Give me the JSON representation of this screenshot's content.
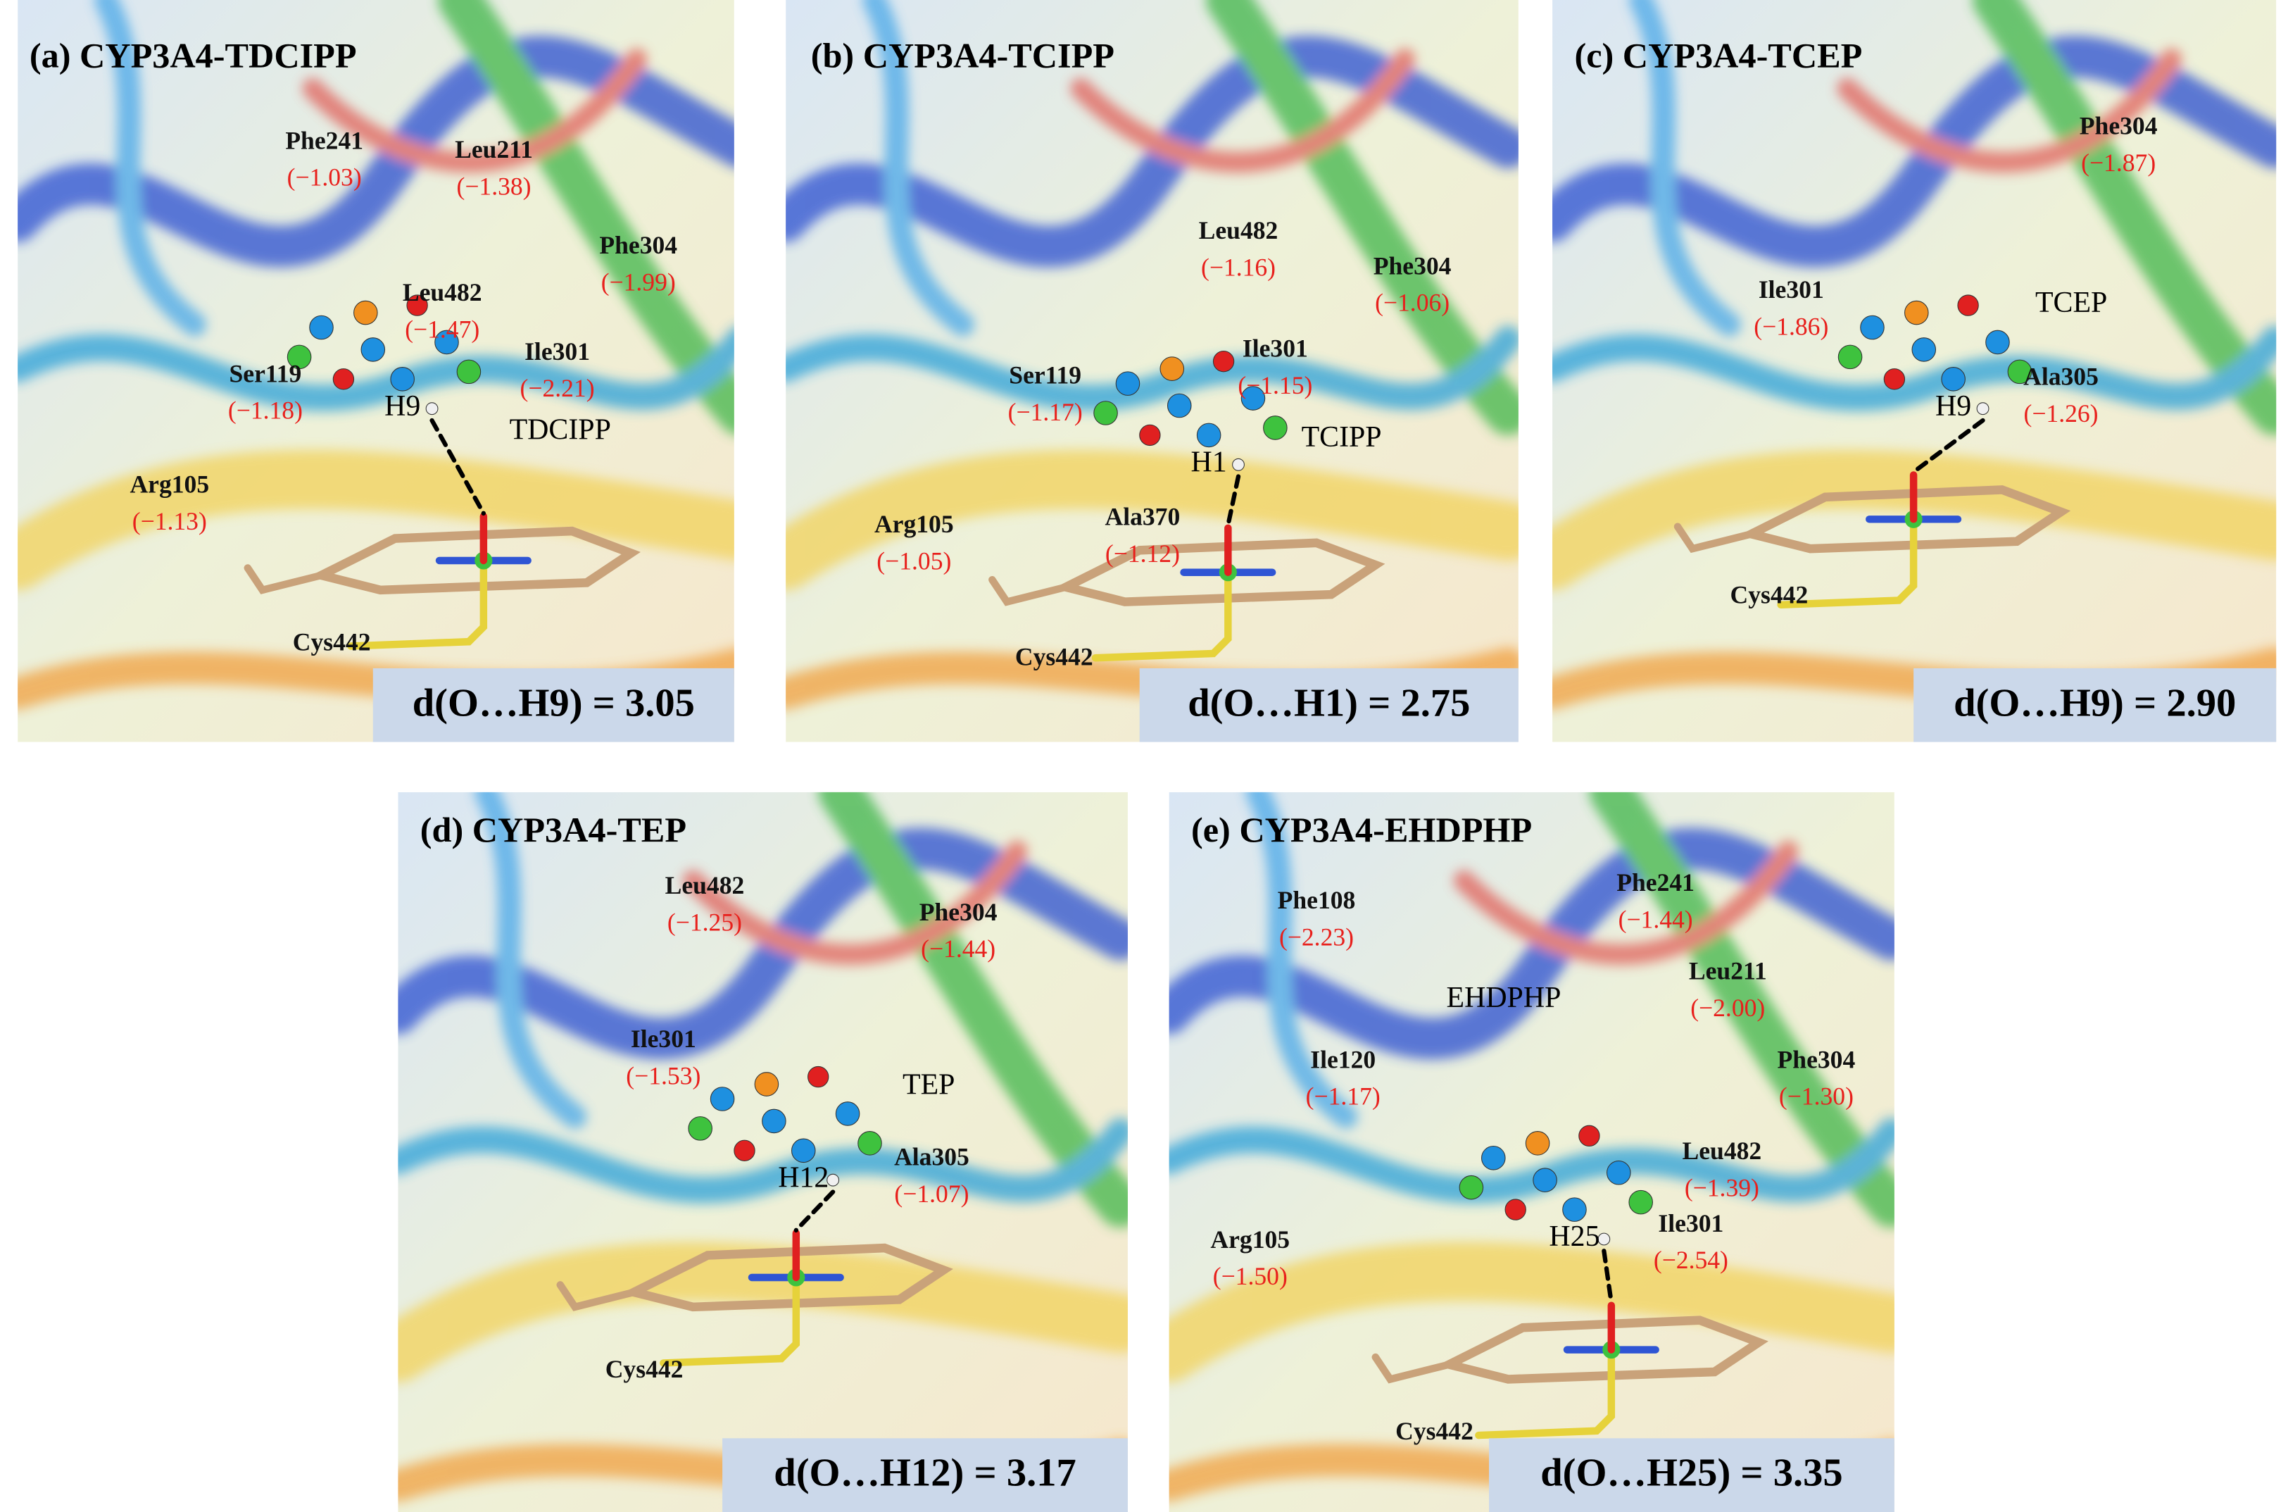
{
  "panels": [
    {
      "title": "(a) CYP3A4-TDCIPP",
      "ligand": "TDCIPP",
      "hydrogen": "H9",
      "anchor": "Cys442",
      "distance": "d(O…H9) = 3.05",
      "residues": [
        {
          "name": "Phe241",
          "energy": "(−1.03)"
        },
        {
          "name": "Leu211",
          "energy": "(−1.38)"
        },
        {
          "name": "Phe304",
          "energy": "(−1.99)"
        },
        {
          "name": "Leu482",
          "energy": "(−1.47)"
        },
        {
          "name": "Ile301",
          "energy": "(−2.21)"
        },
        {
          "name": "Ser119",
          "energy": "(−1.18)"
        },
        {
          "name": "Arg105",
          "energy": "(−1.13)"
        }
      ]
    },
    {
      "title": "(b) CYP3A4-TCIPP",
      "ligand": "TCIPP",
      "hydrogen": "H1",
      "anchor": "Cys442",
      "distance": "d(O…H1) = 2.75",
      "residues": [
        {
          "name": "Leu482",
          "energy": "(−1.16)"
        },
        {
          "name": "Phe304",
          "energy": "(−1.06)"
        },
        {
          "name": "Ile301",
          "energy": "(−1.15)"
        },
        {
          "name": "Ser119",
          "energy": "(−1.17)"
        },
        {
          "name": "Arg105",
          "energy": "(−1.05)"
        },
        {
          "name": "Ala370",
          "energy": "(−1.12)"
        }
      ]
    },
    {
      "title": "(c) CYP3A4-TCEP",
      "ligand": "TCEP",
      "hydrogen": "H9",
      "anchor": "Cys442",
      "distance": "d(O…H9) = 2.90",
      "residues": [
        {
          "name": "Phe304",
          "energy": "(−1.87)"
        },
        {
          "name": "Ile301",
          "energy": "(−1.86)"
        },
        {
          "name": "Ala305",
          "energy": "(−1.26)"
        }
      ]
    },
    {
      "title": "(d) CYP3A4-TEP",
      "ligand": "TEP",
      "hydrogen": "H12",
      "anchor": "Cys442",
      "distance": "d(O…H12) = 3.17",
      "residues": [
        {
          "name": "Leu482",
          "energy": "(−1.25)"
        },
        {
          "name": "Phe304",
          "energy": "(−1.44)"
        },
        {
          "name": "Ile301",
          "energy": "(−1.53)"
        },
        {
          "name": "Ala305",
          "energy": "(−1.07)"
        }
      ]
    },
    {
      "title": "(e) CYP3A4-EHDPHP",
      "ligand": "EHDPHP",
      "hydrogen": "H25",
      "anchor": "Cys442",
      "distance": "d(O…H25) = 3.35",
      "residues": [
        {
          "name": "Phe108",
          "energy": "(−2.23)"
        },
        {
          "name": "Phe241",
          "energy": "(−1.44)"
        },
        {
          "name": "Leu211",
          "energy": "(−2.00)"
        },
        {
          "name": "Ile120",
          "energy": "(−1.17)"
        },
        {
          "name": "Phe304",
          "energy": "(−1.30)"
        },
        {
          "name": "Leu482",
          "energy": "(−1.39)"
        },
        {
          "name": "Ile301",
          "energy": "(−2.54)"
        },
        {
          "name": "Arg105",
          "energy": "(−1.50)"
        }
      ]
    }
  ]
}
